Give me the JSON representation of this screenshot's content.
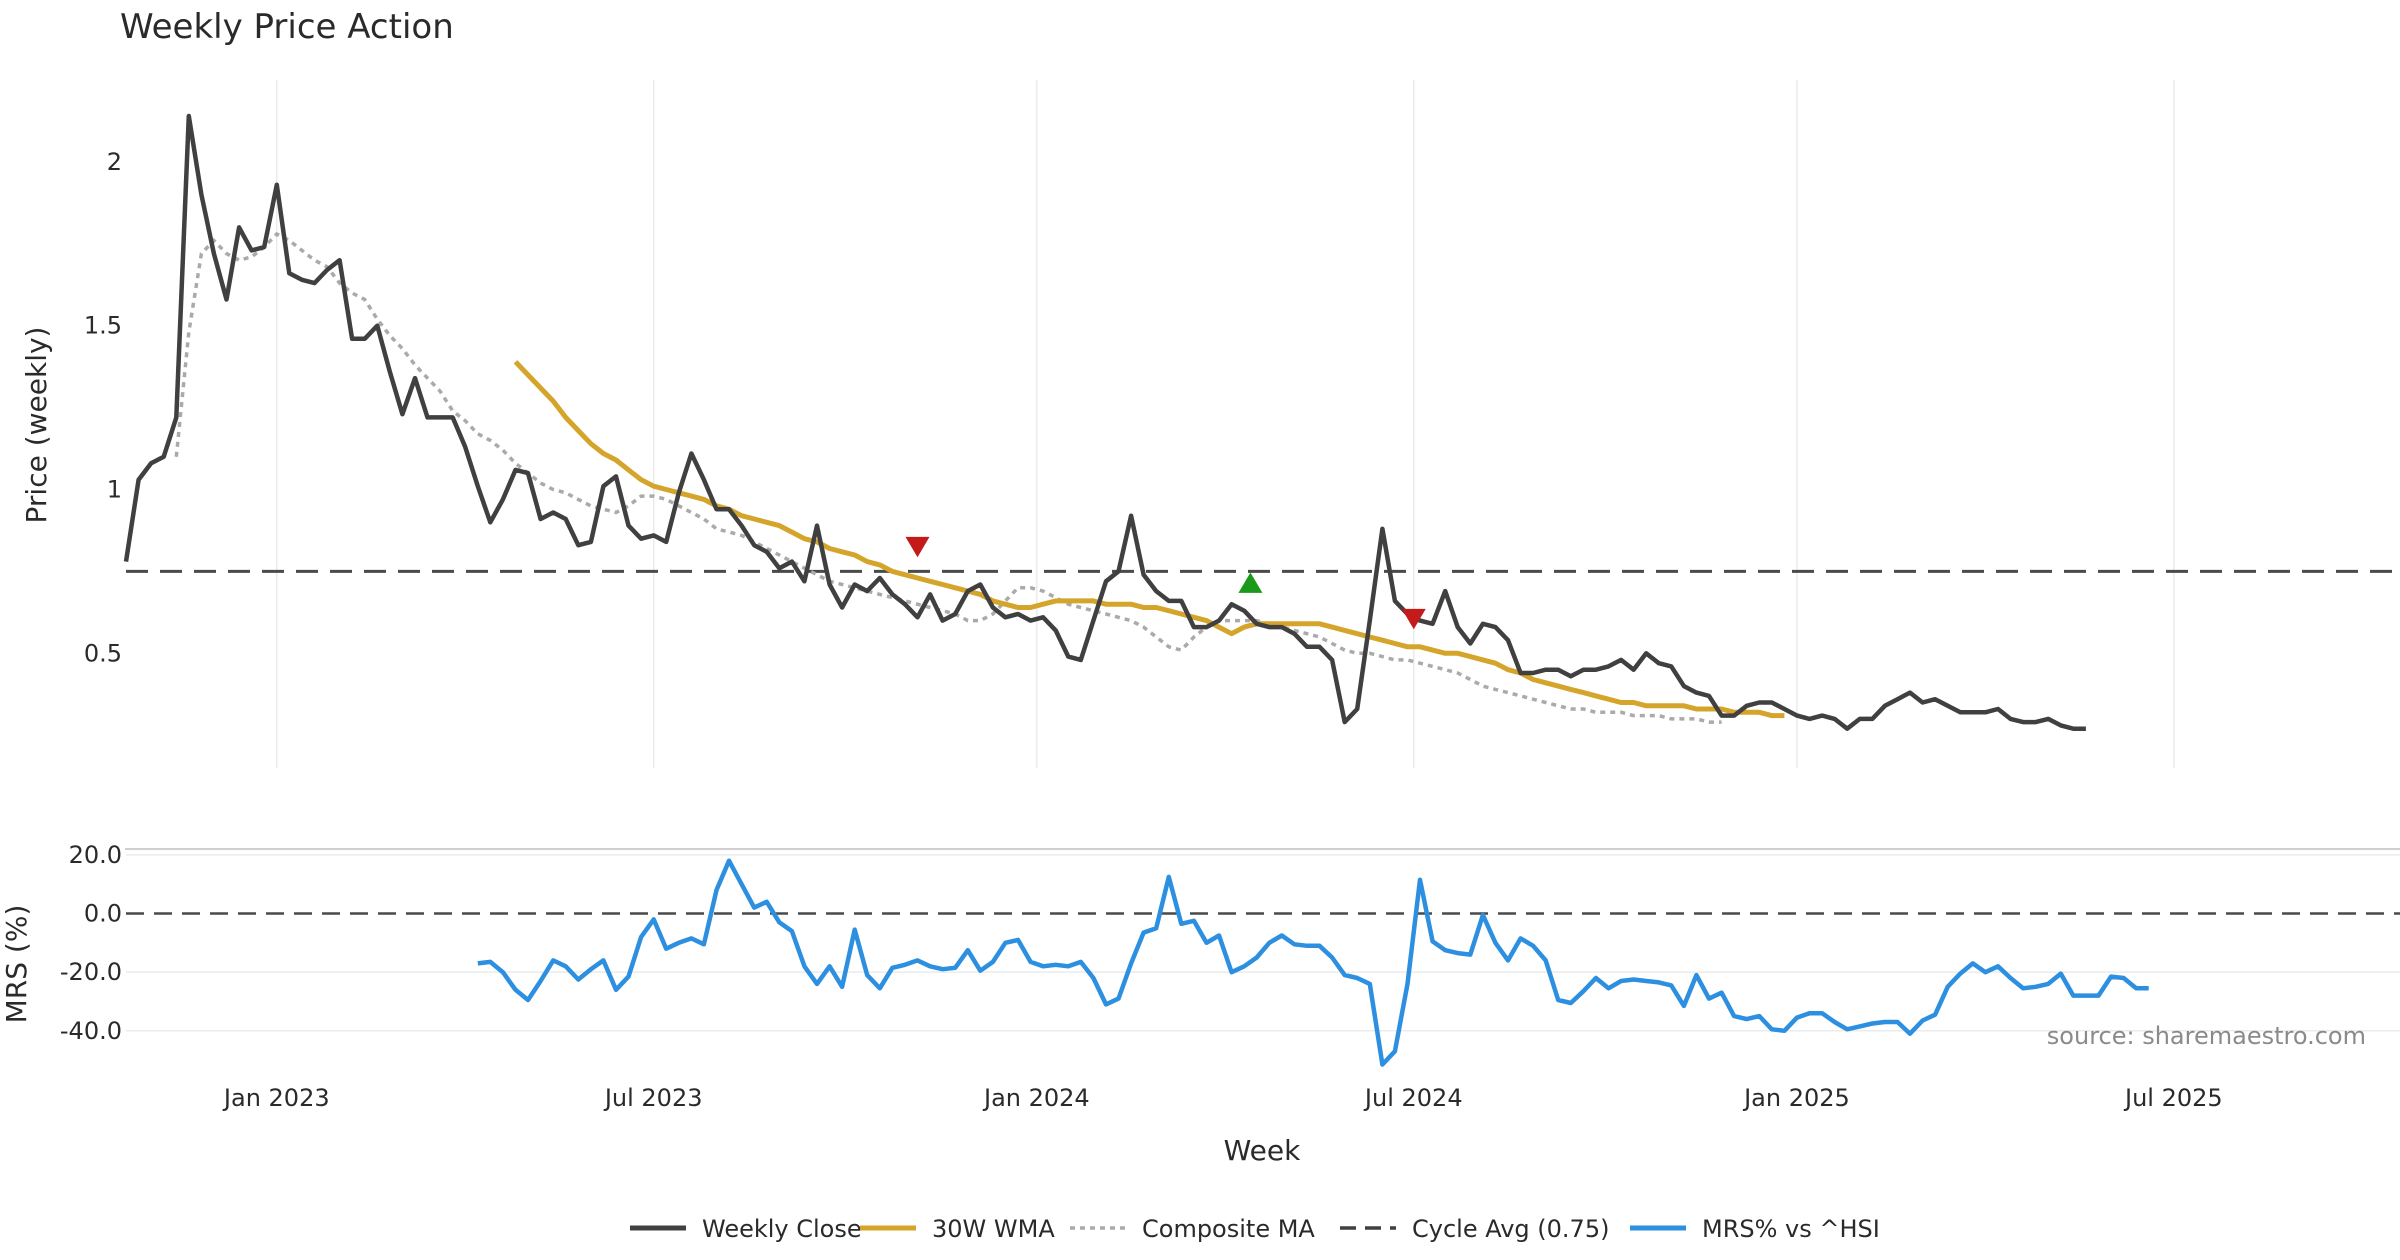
{
  "chart_data": {
    "type": "line",
    "title": "Weekly Price Action",
    "source": "source: sharemaestro.com",
    "xlabel": "Week",
    "x_ticks": [
      "Jan 2023",
      "Jul 2023",
      "Jan 2024",
      "Jul 2024",
      "Jan 2025",
      "Jul 2025"
    ],
    "x_tick_weeks": [
      12,
      42,
      72.5,
      102.5,
      133,
      163
    ],
    "x_range": [
      0,
      181
    ],
    "price_panel": {
      "ylabel": "Price (weekly)",
      "ylim": [
        0.15,
        2.25
      ],
      "y_ticks": [
        0.5,
        1,
        1.5,
        2
      ],
      "y_tick_labels": [
        "0.5",
        "1",
        "1.5",
        "2"
      ],
      "cycle_avg": 0.75,
      "weekly_close": [
        0.78,
        1.03,
        1.08,
        1.1,
        1.22,
        2.14,
        1.9,
        1.72,
        1.58,
        1.8,
        1.73,
        1.74,
        1.93,
        1.66,
        1.64,
        1.63,
        1.67,
        1.7,
        1.46,
        1.46,
        1.5,
        1.36,
        1.23,
        1.34,
        1.22,
        1.22,
        1.22,
        1.13,
        1.01,
        0.9,
        0.97,
        1.06,
        1.05,
        0.91,
        0.93,
        0.91,
        0.83,
        0.84,
        1.01,
        1.04,
        0.89,
        0.85,
        0.86,
        0.84,
        0.99,
        1.11,
        1.03,
        0.94,
        0.94,
        0.89,
        0.83,
        0.81,
        0.76,
        0.78,
        0.72,
        0.89,
        0.71,
        0.64,
        0.71,
        0.69,
        0.73,
        0.68,
        0.65,
        0.61,
        0.68,
        0.6,
        0.62,
        0.69,
        0.71,
        0.64,
        0.61,
        0.62,
        0.6,
        0.61,
        0.57,
        0.49,
        0.48,
        0.6,
        0.72,
        0.75,
        0.92,
        0.74,
        0.69,
        0.66,
        0.66,
        0.58,
        0.58,
        0.6,
        0.65,
        0.63,
        0.59,
        0.58,
        0.58,
        0.56,
        0.52,
        0.52,
        0.48,
        0.29,
        0.33,
        0.6,
        0.88,
        0.66,
        0.62,
        0.6,
        0.59,
        0.69,
        0.58,
        0.53,
        0.59,
        0.58,
        0.54,
        0.44,
        0.44,
        0.45,
        0.45,
        0.43,
        0.45,
        0.45,
        0.46,
        0.48,
        0.45,
        0.5,
        0.47,
        0.46,
        0.4,
        0.38,
        0.37,
        0.31,
        0.31,
        0.34,
        0.35,
        0.35,
        0.33,
        0.31,
        0.3,
        0.31,
        0.3,
        0.27,
        0.3,
        0.3,
        0.34,
        0.36,
        0.38,
        0.35,
        0.36,
        0.34,
        0.32,
        0.32,
        0.32,
        0.33,
        0.3,
        0.29,
        0.29,
        0.3,
        0.28,
        0.27,
        0.27
      ],
      "wma_30w_start_week": 31,
      "wma_30w": [
        1.39,
        1.35,
        1.31,
        1.27,
        1.22,
        1.18,
        1.14,
        1.11,
        1.09,
        1.06,
        1.03,
        1.01,
        1.0,
        0.99,
        0.98,
        0.97,
        0.95,
        0.94,
        0.92,
        0.91,
        0.9,
        0.89,
        0.87,
        0.85,
        0.84,
        0.82,
        0.81,
        0.8,
        0.78,
        0.77,
        0.75,
        0.74,
        0.73,
        0.72,
        0.71,
        0.7,
        0.69,
        0.68,
        0.66,
        0.65,
        0.64,
        0.64,
        0.65,
        0.66,
        0.66,
        0.66,
        0.66,
        0.65,
        0.65,
        0.65,
        0.64,
        0.64,
        0.63,
        0.62,
        0.61,
        0.6,
        0.58,
        0.56,
        0.58,
        0.59,
        0.59,
        0.59,
        0.59,
        0.59,
        0.59,
        0.58,
        0.57,
        0.56,
        0.55,
        0.54,
        0.53,
        0.52,
        0.52,
        0.51,
        0.5,
        0.5,
        0.49,
        0.48,
        0.47,
        0.45,
        0.44,
        0.42,
        0.41,
        0.4,
        0.39,
        0.38,
        0.37,
        0.36,
        0.35,
        0.35,
        0.34,
        0.34,
        0.34,
        0.34,
        0.33,
        0.33,
        0.33,
        0.32,
        0.32,
        0.32,
        0.31,
        0.31
      ],
      "composite_ma_start_week": 4,
      "composite_ma": [
        1.1,
        1.48,
        1.72,
        1.76,
        1.72,
        1.7,
        1.71,
        1.74,
        1.78,
        1.76,
        1.73,
        1.7,
        1.68,
        1.63,
        1.6,
        1.58,
        1.52,
        1.47,
        1.43,
        1.38,
        1.34,
        1.3,
        1.24,
        1.21,
        1.17,
        1.15,
        1.12,
        1.08,
        1.05,
        1.02,
        1.0,
        0.99,
        0.97,
        0.95,
        0.94,
        0.93,
        0.95,
        0.98,
        0.98,
        0.97,
        0.95,
        0.93,
        0.91,
        0.88,
        0.87,
        0.86,
        0.84,
        0.82,
        0.8,
        0.78,
        0.76,
        0.74,
        0.72,
        0.71,
        0.7,
        0.69,
        0.68,
        0.67,
        0.66,
        0.65,
        0.64,
        0.63,
        0.62,
        0.6,
        0.6,
        0.62,
        0.66,
        0.7,
        0.7,
        0.69,
        0.67,
        0.65,
        0.64,
        0.63,
        0.62,
        0.61,
        0.6,
        0.58,
        0.55,
        0.52,
        0.51,
        0.55,
        0.58,
        0.6,
        0.6,
        0.6,
        0.6,
        0.59,
        0.58,
        0.57,
        0.56,
        0.55,
        0.53,
        0.51,
        0.5,
        0.5,
        0.49,
        0.48,
        0.48,
        0.47,
        0.46,
        0.45,
        0.44,
        0.42,
        0.4,
        0.39,
        0.38,
        0.37,
        0.36,
        0.35,
        0.34,
        0.33,
        0.33,
        0.32,
        0.32,
        0.32,
        0.31,
        0.31,
        0.31,
        0.3,
        0.3,
        0.3,
        0.29,
        0.29
      ],
      "signals": [
        {
          "type": "sell",
          "week": 63,
          "price": 0.83
        },
        {
          "type": "buy",
          "week": 89.5,
          "price": 0.71
        },
        {
          "type": "sell",
          "week": 102.5,
          "price": 0.61
        }
      ]
    },
    "mrs_panel": {
      "ylabel": "MRS (%)",
      "ylim": [
        -52,
        22
      ],
      "y_ticks": [
        20,
        0,
        -20,
        -40
      ],
      "y_tick_labels": [
        "20.0",
        "0.0",
        "-20.0",
        "-40.0"
      ],
      "reference_line": 0,
      "mrs_start_week": 28,
      "mrs_vs_hsi": [
        -17,
        -16.5,
        -20,
        -26,
        -29.5,
        -23,
        -16,
        -18,
        -22.5,
        -19,
        -16,
        -26,
        -21.5,
        -8,
        -2,
        -12,
        -10,
        -8.5,
        -10.5,
        8,
        18,
        10,
        2,
        4,
        -3,
        -6,
        -18,
        -24,
        -18,
        -25,
        -5.5,
        -21,
        -25.5,
        -18.5,
        -17.5,
        -16,
        -18,
        -19,
        -18.5,
        -12.5,
        -19.5,
        -16.5,
        -10,
        -9,
        -16.5,
        -18,
        -17.5,
        -18,
        -16.5,
        -22,
        -31,
        -29,
        -17,
        -6.5,
        -5,
        12.5,
        -3.5,
        -2.5,
        -10,
        -7.5,
        -20,
        -18,
        -15,
        -10,
        -7.5,
        -10.5,
        -11,
        -11,
        -15,
        -21,
        -22,
        -24,
        -51.5,
        -47,
        -24,
        11.5,
        -9.5,
        -12.5,
        -13.5,
        -14,
        -0.5,
        -10,
        -16,
        -8.5,
        -11,
        -16,
        -29.5,
        -30.5,
        -26.5,
        -22,
        -25.5,
        -23,
        -22.5,
        -23,
        -23.5,
        -24.5,
        -31.5,
        -21,
        -29,
        -27,
        -35,
        -36,
        -35,
        -39.5,
        -40,
        -35.5,
        -34,
        -34,
        -37,
        -39.5,
        -38.5,
        -37.5,
        -37,
        -37,
        -41,
        -36.5,
        -34.5,
        -25,
        -20.5,
        -17,
        -20,
        -18,
        -22,
        -25.5,
        -25,
        -24,
        -20.5,
        -28,
        -28,
        -28,
        -21.5,
        -22,
        -25.5,
        -25.5
      ]
    },
    "legend": [
      {
        "label": "Weekly Close",
        "color": "#404040",
        "style": "solid"
      },
      {
        "label": "30W WMA",
        "color": "#d4a52a",
        "style": "solid"
      },
      {
        "label": "Composite MA",
        "color": "#aaaaaa",
        "style": "dotted"
      },
      {
        "label": "Cycle Avg (0.75)",
        "color": "#404040",
        "style": "dashed"
      },
      {
        "label": "MRS% vs ^HSI",
        "color": "#2d8fe0",
        "style": "solid"
      }
    ],
    "colors": {
      "close": "#404040",
      "wma": "#d4a52a",
      "composite": "#aaaaaa",
      "cycle": "#4a4a4a",
      "mrs": "#2d8fe0",
      "buy": "#1a9a1a",
      "sell": "#c41a1a",
      "grid": "#ebebeb"
    }
  }
}
